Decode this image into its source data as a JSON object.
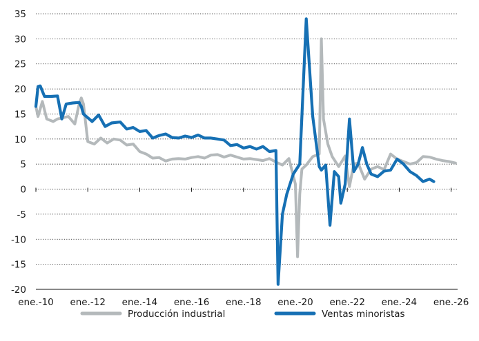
{
  "chart_data": {
    "type": "line",
    "title": "",
    "xlabel": "",
    "ylabel": "",
    "ylim": [
      -20,
      35
    ],
    "yticks": [
      35,
      30,
      25,
      20,
      15,
      10,
      5,
      0,
      -5,
      -10,
      -15,
      -20
    ],
    "xlim": [
      "2010-01",
      "2026-04"
    ],
    "grid": "horizontal",
    "legend_position": "bottom",
    "xtick_labels": [
      {
        "label": "ene.-10",
        "date": "2010-01"
      },
      {
        "label": "ene.-12",
        "date": "2012-01"
      },
      {
        "label": "ene.-14",
        "date": "2014-01"
      },
      {
        "label": "ene.-16",
        "date": "2016-01"
      },
      {
        "label": "ene.-18",
        "date": "2018-01"
      },
      {
        "label": "ene.-20",
        "date": "2020-01"
      },
      {
        "label": "ene.-22",
        "date": "2022-01"
      },
      {
        "label": "ene.-24",
        "date": "2024-01"
      },
      {
        "label": "ene.-26",
        "date": "2026-01"
      }
    ],
    "series": [
      {
        "name": "Producción industrial",
        "color": "#b4b9bb",
        "points": [
          [
            "2010-01",
            16.5
          ],
          [
            "2010-02",
            14.5
          ],
          [
            "2010-04",
            17.5
          ],
          [
            "2010-06",
            14.0
          ],
          [
            "2010-09",
            13.5
          ],
          [
            "2010-11",
            14.0
          ],
          [
            "2011-01",
            14.2
          ],
          [
            "2011-04",
            14.5
          ],
          [
            "2011-07",
            13.0
          ],
          [
            "2011-09",
            17.0
          ],
          [
            "2011-10",
            18.2
          ],
          [
            "2011-11",
            17.0
          ],
          [
            "2012-01",
            9.5
          ],
          [
            "2012-04",
            9.0
          ],
          [
            "2012-07",
            10.2
          ],
          [
            "2012-10",
            9.2
          ],
          [
            "2013-01",
            10.0
          ],
          [
            "2013-04",
            9.8
          ],
          [
            "2013-07",
            8.8
          ],
          [
            "2013-10",
            9.0
          ],
          [
            "2014-01",
            7.5
          ],
          [
            "2014-04",
            7.0
          ],
          [
            "2014-07",
            6.2
          ],
          [
            "2014-10",
            6.3
          ],
          [
            "2015-01",
            5.6
          ],
          [
            "2015-04",
            6.0
          ],
          [
            "2015-07",
            6.1
          ],
          [
            "2015-10",
            6.0
          ],
          [
            "2016-01",
            6.3
          ],
          [
            "2016-04",
            6.5
          ],
          [
            "2016-07",
            6.2
          ],
          [
            "2016-10",
            6.8
          ],
          [
            "2017-01",
            6.9
          ],
          [
            "2017-04",
            6.4
          ],
          [
            "2017-07",
            6.8
          ],
          [
            "2017-10",
            6.4
          ],
          [
            "2018-01",
            6.0
          ],
          [
            "2018-04",
            6.1
          ],
          [
            "2018-07",
            5.9
          ],
          [
            "2018-10",
            5.7
          ],
          [
            "2019-01",
            6.1
          ],
          [
            "2019-04",
            5.4
          ],
          [
            "2019-07",
            4.8
          ],
          [
            "2019-10",
            6.1
          ],
          [
            "2020-01",
            1.0
          ],
          [
            "2020-02",
            -13.5
          ],
          [
            "2020-03",
            -1.0
          ],
          [
            "2020-04",
            4.0
          ],
          [
            "2020-06",
            4.8
          ],
          [
            "2020-09",
            6.5
          ],
          [
            "2020-12",
            7.0
          ],
          [
            "2021-01",
            30.0
          ],
          [
            "2021-02",
            14.0
          ],
          [
            "2021-04",
            9.0
          ],
          [
            "2021-06",
            6.5
          ],
          [
            "2021-09",
            4.5
          ],
          [
            "2021-12",
            6.6
          ],
          [
            "2022-02",
            0.5
          ],
          [
            "2022-04",
            5.0
          ],
          [
            "2022-06",
            5.2
          ],
          [
            "2022-09",
            2.0
          ],
          [
            "2022-12",
            4.0
          ],
          [
            "2023-03",
            4.5
          ],
          [
            "2023-06",
            3.9
          ],
          [
            "2023-09",
            7.0
          ],
          [
            "2023-12",
            6.0
          ],
          [
            "2024-03",
            5.5
          ],
          [
            "2024-06",
            5.0
          ],
          [
            "2024-09",
            5.3
          ],
          [
            "2024-12",
            6.5
          ],
          [
            "2025-03",
            6.4
          ],
          [
            "2025-06",
            6.0
          ],
          [
            "2025-09",
            5.7
          ],
          [
            "2025-12",
            5.5
          ],
          [
            "2026-03",
            5.2
          ]
        ]
      },
      {
        "name": "Ventas minoristas",
        "color": "#1670b4",
        "points": [
          [
            "2010-01",
            16.5
          ],
          [
            "2010-02",
            20.5
          ],
          [
            "2010-03",
            20.6
          ],
          [
            "2010-05",
            18.5
          ],
          [
            "2010-08",
            18.5
          ],
          [
            "2010-11",
            18.6
          ],
          [
            "2011-01",
            14.0
          ],
          [
            "2011-03",
            17.0
          ],
          [
            "2011-06",
            17.2
          ],
          [
            "2011-09",
            17.3
          ],
          [
            "2011-10",
            16.5
          ],
          [
            "2011-11",
            15.0
          ],
          [
            "2012-03",
            13.5
          ],
          [
            "2012-06",
            14.8
          ],
          [
            "2012-09",
            12.5
          ],
          [
            "2012-12",
            13.2
          ],
          [
            "2013-04",
            13.4
          ],
          [
            "2013-07",
            12.0
          ],
          [
            "2013-10",
            12.3
          ],
          [
            "2014-01",
            11.5
          ],
          [
            "2014-04",
            11.7
          ],
          [
            "2014-07",
            10.2
          ],
          [
            "2014-10",
            10.7
          ],
          [
            "2015-01",
            11.0
          ],
          [
            "2015-04",
            10.3
          ],
          [
            "2015-07",
            10.2
          ],
          [
            "2015-10",
            10.6
          ],
          [
            "2016-01",
            10.3
          ],
          [
            "2016-04",
            10.8
          ],
          [
            "2016-07",
            10.2
          ],
          [
            "2016-10",
            10.2
          ],
          [
            "2017-01",
            10.0
          ],
          [
            "2017-04",
            9.8
          ],
          [
            "2017-07",
            8.7
          ],
          [
            "2017-10",
            8.9
          ],
          [
            "2018-01",
            8.2
          ],
          [
            "2018-04",
            8.5
          ],
          [
            "2018-07",
            8.0
          ],
          [
            "2018-10",
            8.5
          ],
          [
            "2019-01",
            7.5
          ],
          [
            "2019-04",
            7.7
          ],
          [
            "2019-05",
            -19.0
          ],
          [
            "2019-07",
            -5.0
          ],
          [
            "2019-09",
            -1.0
          ],
          [
            "2019-12",
            3.0
          ],
          [
            "2020-03",
            5.0
          ],
          [
            "2020-06",
            34.0
          ],
          [
            "2020-09",
            14.5
          ],
          [
            "2020-12",
            4.5
          ],
          [
            "2021-01",
            3.8
          ],
          [
            "2021-03",
            4.8
          ],
          [
            "2021-05",
            -7.2
          ],
          [
            "2021-07",
            3.5
          ],
          [
            "2021-09",
            2.5
          ],
          [
            "2021-10",
            -2.8
          ],
          [
            "2021-12",
            1.0
          ],
          [
            "2022-02",
            14.0
          ],
          [
            "2022-04",
            3.5
          ],
          [
            "2022-06",
            5.0
          ],
          [
            "2022-08",
            8.3
          ],
          [
            "2022-10",
            5.0
          ],
          [
            "2022-12",
            3.0
          ],
          [
            "2023-03",
            2.5
          ],
          [
            "2023-06",
            3.6
          ],
          [
            "2023-09",
            3.8
          ],
          [
            "2023-12",
            6.0
          ],
          [
            "2024-03",
            5.0
          ],
          [
            "2024-06",
            3.5
          ],
          [
            "2024-09",
            2.7
          ],
          [
            "2024-12",
            1.5
          ],
          [
            "2025-03",
            2.0
          ],
          [
            "2025-05",
            1.5
          ]
        ]
      }
    ],
    "legend": [
      {
        "label": "Producción industrial",
        "color": "#b4b9bb"
      },
      {
        "label": "Ventas minoristas",
        "color": "#1670b4"
      }
    ]
  }
}
